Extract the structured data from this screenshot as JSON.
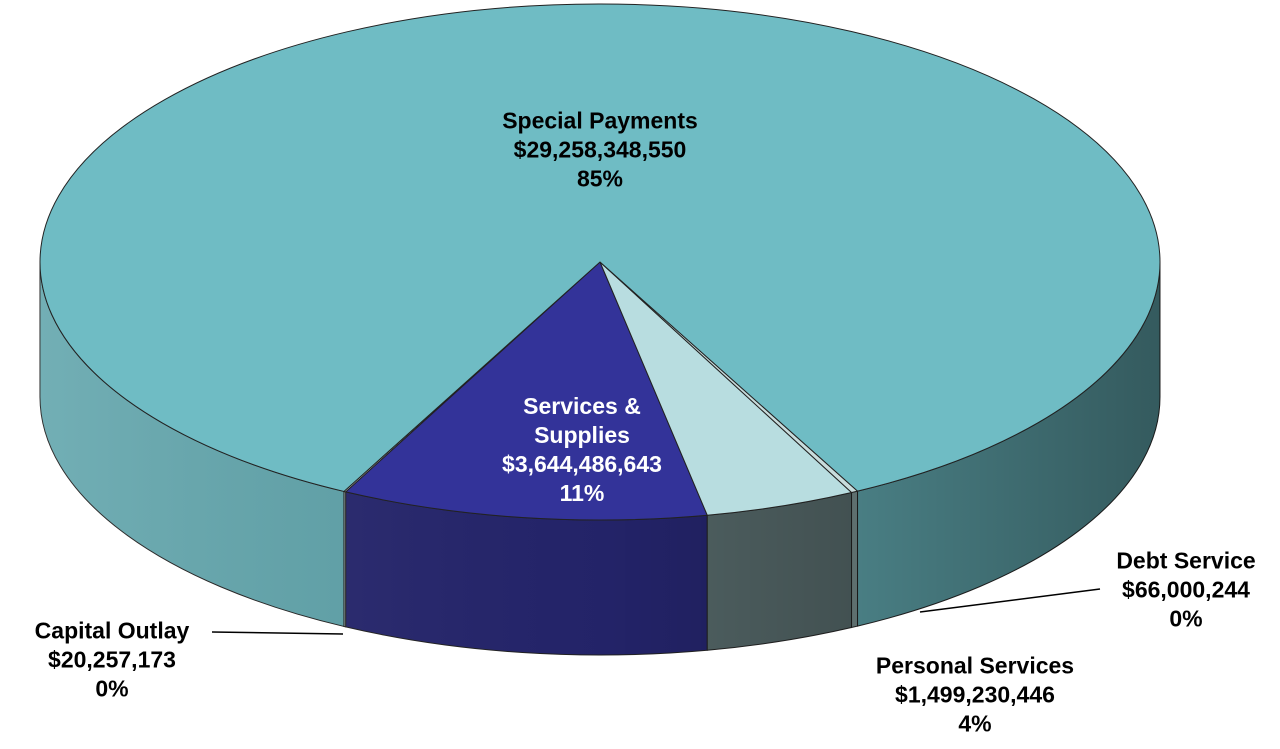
{
  "chart_data": {
    "type": "pie3d",
    "categories": [
      "Capital Outlay",
      "Services & Supplies",
      "Personal Services",
      "Debt Service",
      "Special Payments"
    ],
    "values": [
      20257173,
      3644486643,
      1499230446,
      66000244,
      29258348550
    ],
    "value_labels": [
      "$20,257,173",
      "$3,644,486,643",
      "$1,499,230,446",
      "$66,000,244",
      "$29,258,348,550"
    ],
    "percent_labels": [
      "0%",
      "11%",
      "4%",
      "0%",
      "85%"
    ],
    "colors": [
      "#d4e4e4",
      "#333399",
      "#b8dde0",
      "#c8dcdc",
      "#6fbcc4"
    ],
    "side_colors": [
      "#9fb4b4",
      "#25256e",
      "#56696a",
      "#7a9090",
      "#5fa4ab"
    ]
  }
}
